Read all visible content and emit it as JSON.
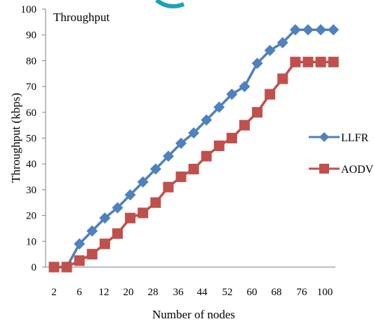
{
  "chart_data": {
    "type": "line",
    "title": "Throughput",
    "xlabel": "Number of nodes",
    "ylabel": "Throughput (kbps)",
    "ylim": [
      0,
      100
    ],
    "yticks": [
      "0",
      "10",
      "20",
      "30",
      "40",
      "50",
      "60",
      "70",
      "80",
      "90",
      "100"
    ],
    "xtick_labels": [
      "2",
      "6",
      "12",
      "20",
      "28",
      "36",
      "44",
      "52",
      "60",
      "68",
      "76",
      "100"
    ],
    "grid": false,
    "legend_position": "right",
    "series": [
      {
        "name": "LLFR",
        "color": "#4f81bd",
        "marker": "diamond",
        "values": [
          0,
          0,
          9,
          14,
          19,
          23,
          28,
          33,
          38,
          43,
          48,
          52,
          57,
          62,
          67,
          70,
          79,
          84,
          87,
          92,
          92,
          92,
          92
        ]
      },
      {
        "name": "AODV",
        "color": "#c0504d",
        "marker": "square",
        "values": [
          0,
          0,
          2.5,
          5,
          9,
          13,
          19,
          21,
          25,
          31,
          35,
          38,
          43,
          47,
          50,
          55,
          60,
          67,
          73,
          79.5,
          79.5,
          79.5,
          79.5
        ]
      }
    ]
  }
}
